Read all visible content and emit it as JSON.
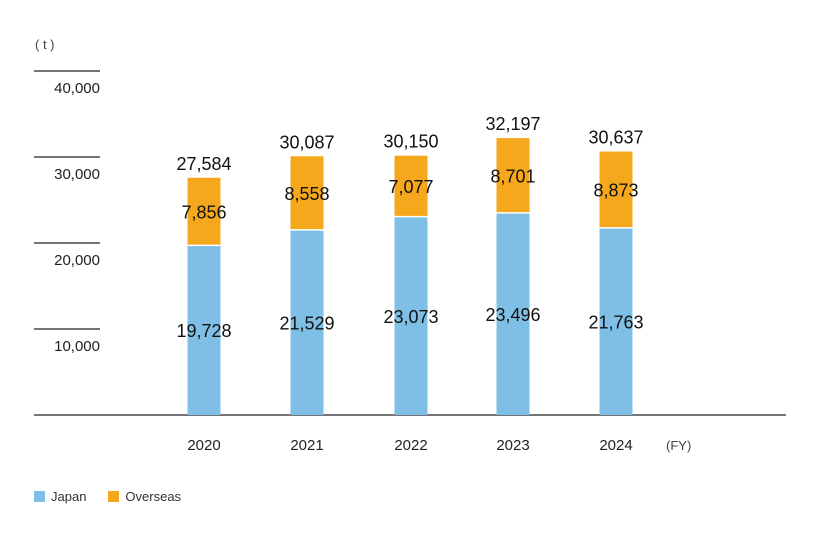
{
  "chart_data": {
    "type": "bar",
    "stacked": true,
    "unit_label": "( t )",
    "x_suffix": "(FY)",
    "categories": [
      "2020",
      "2021",
      "2022",
      "2023",
      "2024"
    ],
    "series": [
      {
        "name": "Japan",
        "color": "#7fbfe6",
        "values": [
          19728,
          21529,
          23073,
          23496,
          21763
        ],
        "labels": [
          "19,728",
          "21,529",
          "23,073",
          "23,496",
          "21,763"
        ]
      },
      {
        "name": "Overseas",
        "color": "#f5a81c",
        "values": [
          7856,
          8558,
          7077,
          8701,
          8873
        ],
        "labels": [
          "7,856",
          "8,558",
          "7,077",
          "8,701",
          "8,873"
        ]
      }
    ],
    "totals": [
      "27,584",
      "30,087",
      "30,150",
      "32,197",
      "30,637"
    ],
    "yticks": [
      {
        "value": 10000,
        "label": "10,000"
      },
      {
        "value": 20000,
        "label": "20,000"
      },
      {
        "value": 30000,
        "label": "30,000"
      },
      {
        "value": 40000,
        "label": "40,000"
      }
    ],
    "ylim": [
      0,
      40000
    ],
    "legend_position": "bottom-left"
  }
}
